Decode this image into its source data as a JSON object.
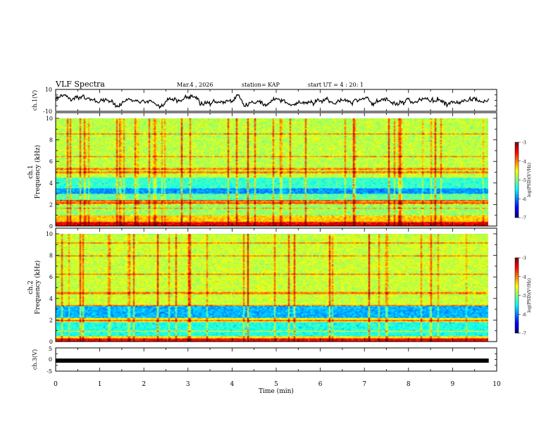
{
  "header": {
    "title": "VLF Spectra",
    "date": "Mar.4 , 2026",
    "station": "station= KAP",
    "start": "start UT =  4 : 20: 1"
  },
  "chart_data": [
    {
      "type": "line",
      "name": "ch.1 waveform",
      "ylabel": "ch.1(V)",
      "ylim": [
        -10,
        10
      ],
      "yticks": [
        "10",
        "-10"
      ],
      "xlim": [
        0,
        10
      ],
      "data_until_min": 9.82,
      "description_values": "noisy signal fluctuating approximately between -8 and 8 V"
    },
    {
      "type": "heatmap",
      "name": "ch.1 spectrogram",
      "ylabel": "ch.1\nFrequency (kHz)",
      "ylabel_line1": "ch.1",
      "ylabel_line2": "Frequency (kHz)",
      "ylim": [
        0,
        10
      ],
      "yticks": [
        "0",
        "2",
        "4",
        "6",
        "8",
        "10"
      ],
      "xlim": [
        0,
        10
      ],
      "data_until_min": 9.82,
      "colorbar": {
        "label": "log(PSD)(V²/Hz)",
        "range": [
          -7,
          -3
        ],
        "ticks": [
          "-3",
          "-4",
          "-5",
          "-6",
          "-7"
        ]
      },
      "bands": [
        {
          "from_khz": 0.0,
          "to_khz": 1.0,
          "level": -4.3
        },
        {
          "from_khz": 1.0,
          "to_khz": 2.0,
          "level": -4.9
        },
        {
          "from_khz": 2.0,
          "to_khz": 2.4,
          "level": -4.3
        },
        {
          "from_khz": 2.4,
          "to_khz": 3.0,
          "level": -5.1
        },
        {
          "from_khz": 3.0,
          "to_khz": 3.5,
          "level": -5.9
        },
        {
          "from_khz": 3.5,
          "to_khz": 4.5,
          "level": -5.3
        },
        {
          "from_khz": 4.5,
          "to_khz": 5.0,
          "level": -4.7
        },
        {
          "from_khz": 5.0,
          "to_khz": 10.0,
          "level": -4.75
        }
      ],
      "lines_khz": [
        0.3,
        1.6,
        2.1,
        2.3,
        5.0,
        5.3,
        6.5,
        8.6
      ],
      "bursts_min": [
        0.65,
        1.45,
        1.8,
        2.25,
        2.85,
        4.1,
        4.35,
        5.1,
        6.75,
        7.55,
        7.8,
        8.6
      ]
    },
    {
      "type": "heatmap",
      "name": "ch.2 spectrogram",
      "ylabel": "ch.2\nFrequency (kHz)",
      "ylabel_line1": "ch.2",
      "ylabel_line2": "Frequency (kHz)",
      "ylim": [
        0,
        10
      ],
      "yticks": [
        "0",
        "2",
        "4",
        "6",
        "8",
        "10"
      ],
      "xlim": [
        0,
        10
      ],
      "data_until_min": 9.82,
      "colorbar": {
        "label": "log(PSD)(V²/Hz)",
        "range": [
          -7,
          -3
        ],
        "ticks": [
          "-3",
          "-4",
          "-5",
          "-6",
          "-7"
        ]
      },
      "bands": [
        {
          "from_khz": 0.0,
          "to_khz": 0.5,
          "level": -4.4
        },
        {
          "from_khz": 0.5,
          "to_khz": 1.8,
          "level": -5.4
        },
        {
          "from_khz": 1.8,
          "to_khz": 2.2,
          "level": -4.5
        },
        {
          "from_khz": 2.2,
          "to_khz": 3.3,
          "level": -5.8
        },
        {
          "from_khz": 3.3,
          "to_khz": 10.0,
          "level": -4.7
        }
      ],
      "lines_khz": [
        0.9,
        1.9,
        3.3,
        4.5,
        6.3,
        8.0,
        9.2
      ],
      "bursts_min": [
        0.55,
        1.2,
        1.65,
        2.3,
        3.0,
        4.35,
        5.4,
        6.2,
        7.1,
        7.5,
        8.5
      ]
    },
    {
      "type": "line",
      "name": "ch.3 waveform",
      "ylabel": "ch.3(V)",
      "ylim": [
        -5,
        5
      ],
      "yticks": [
        "5",
        "0",
        "-5"
      ],
      "xlim": [
        0,
        10
      ],
      "level_v": -0.5,
      "data_until_min": 9.82
    }
  ],
  "xaxis": {
    "label": "Time (min)",
    "ticks": [
      "0",
      "1",
      "2",
      "3",
      "4",
      "5",
      "6",
      "7",
      "8",
      "9",
      "10"
    ]
  },
  "colors": {
    "trace": "#000000",
    "axis": "#000000",
    "background": "#ffffff"
  }
}
